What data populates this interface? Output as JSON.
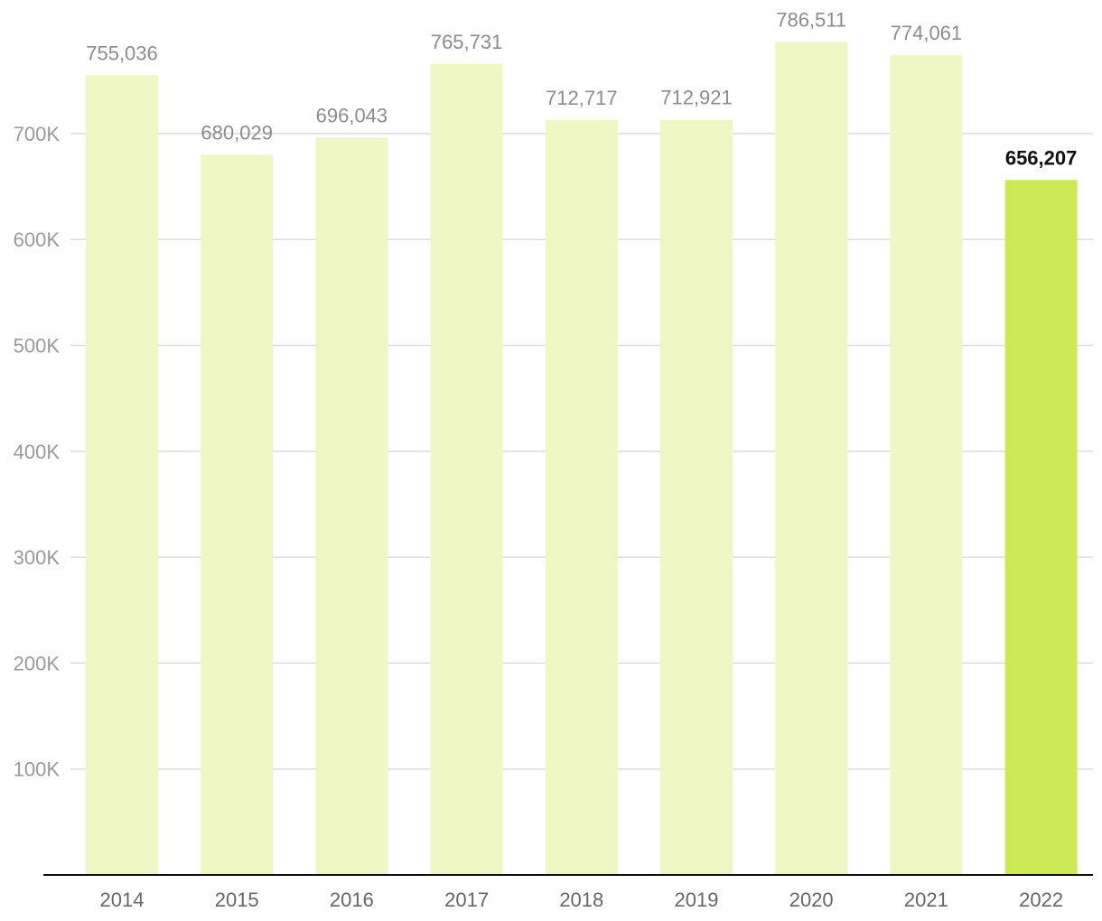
{
  "chart_data": {
    "type": "bar",
    "title": "",
    "xlabel": "",
    "ylabel": "",
    "categories": [
      "2014",
      "2015",
      "2016",
      "2017",
      "2018",
      "2019",
      "2020",
      "2021",
      "2022"
    ],
    "values": [
      755036,
      680029,
      696043,
      765731,
      712717,
      712921,
      786511,
      774061,
      656207
    ],
    "value_labels": [
      "755,036",
      "680,029",
      "696,043",
      "765,731",
      "712,717",
      "712,921",
      "786,511",
      "774,061",
      "656,207"
    ],
    "highlight_index": 8,
    "ylim": [
      0,
      800000
    ],
    "y_ticks": [
      100000,
      200000,
      300000,
      400000,
      500000,
      600000,
      700000
    ],
    "y_tick_labels": [
      "100K",
      "200K",
      "300K",
      "400K",
      "500K",
      "600K",
      "700K"
    ],
    "grid": true,
    "legend": "none",
    "colors": {
      "bar": "#eef7c4",
      "bar_highlight": "#cde955",
      "grid": "#dcdcdc",
      "axis": "#111111"
    }
  }
}
